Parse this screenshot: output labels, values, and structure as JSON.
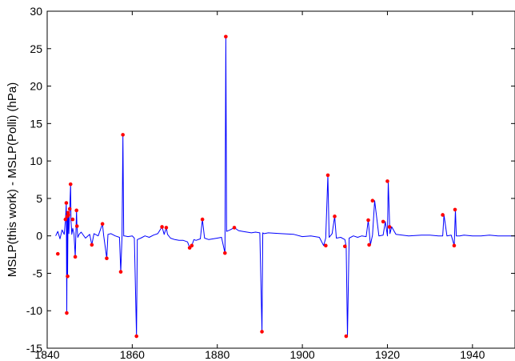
{
  "chart_data": {
    "type": "line",
    "title": "",
    "xlabel": "",
    "ylabel": "MSLP(this work) - MSLP(Polli) (hPa)",
    "xlim": [
      1840,
      1950
    ],
    "ylim": [
      -15,
      30
    ],
    "xticks": [
      1840,
      1860,
      1880,
      1900,
      1920,
      1940
    ],
    "yticks": [
      -15,
      -10,
      -5,
      0,
      5,
      10,
      15,
      20,
      25,
      30
    ],
    "grid": false,
    "legend": "none",
    "colors": {
      "line": "#0000ff",
      "markers": "#ff0000"
    },
    "series": [
      {
        "style": "line",
        "x": [
          1842,
          1842.5,
          1843,
          1843.5,
          1844,
          1844.3,
          1844.5,
          1844.6,
          1844.7,
          1844.8,
          1844.9,
          1845,
          1845.1,
          1845.3,
          1845.5,
          1845.6,
          1845.8,
          1846,
          1846.3,
          1846.6,
          1846.9,
          1847,
          1847.2,
          1847.5,
          1848,
          1849,
          1850,
          1850.5,
          1851,
          1852,
          1853,
          1853.3,
          1854,
          1854.3,
          1855,
          1856,
          1857,
          1857.3,
          1857.6,
          1857.8,
          1858,
          1858.2,
          1859,
          1860,
          1860.5,
          1861,
          1861.2,
          1862,
          1863,
          1864,
          1865,
          1866,
          1867,
          1867.5,
          1868,
          1868.3,
          1869,
          1870,
          1871,
          1872,
          1873,
          1873.5,
          1874,
          1874.5,
          1875,
          1876,
          1876.5,
          1877,
          1878,
          1879,
          1880,
          1881,
          1881.8,
          1882,
          1882.2,
          1883,
          1884,
          1885,
          1886,
          1887,
          1888,
          1889,
          1890,
          1890.5,
          1890.7,
          1891,
          1892,
          1895,
          1898,
          1900,
          1902,
          1904,
          1905,
          1905.5,
          1906,
          1906.3,
          1907,
          1907.6,
          1908,
          1909,
          1910,
          1910.3,
          1910.6,
          1911,
          1912,
          1913,
          1914,
          1915,
          1915.5,
          1916,
          1916.5,
          1917,
          1918,
          1919,
          1919.5,
          1920,
          1920.2,
          1920.6,
          1921,
          1922,
          1925,
          1928,
          1930,
          1932,
          1933,
          1933.3,
          1934,
          1935,
          1935.7,
          1936,
          1936.2,
          1937,
          1938,
          1940,
          1942,
          1944,
          1946,
          1948,
          1950
        ],
        "y": [
          0,
          0.6,
          -0.4,
          0.8,
          0.2,
          2.2,
          4.4,
          -10.3,
          2.6,
          -5.4,
          3.1,
          2.8,
          0.3,
          3.6,
          6.9,
          2.0,
          0.2,
          1.0,
          0.3,
          -2.8,
          3.4,
          1.3,
          -0.2,
          0.2,
          0.5,
          -0.3,
          0.2,
          -1.2,
          0.3,
          0,
          1.6,
          0,
          -3.0,
          0.2,
          0.3,
          0,
          -0.2,
          -4.8,
          0,
          13.5,
          0,
          0,
          -0.1,
          0,
          -0.3,
          -13.4,
          -0.5,
          -0.3,
          0,
          -0.2,
          0.1,
          0.3,
          1.2,
          0.2,
          1.1,
          0.2,
          -0.3,
          -0.5,
          -0.6,
          -0.6,
          -0.8,
          -1.6,
          -1.3,
          -0.5,
          -0.6,
          -0.4,
          2.2,
          -0.3,
          -0.5,
          -0.4,
          -0.3,
          -0.2,
          -2.3,
          26.6,
          0.6,
          0.8,
          1.1,
          0.7,
          0.6,
          0.5,
          0.4,
          0.5,
          0.4,
          -12.8,
          0.4,
          0.3,
          0.4,
          0.3,
          0.2,
          -0.1,
          0,
          -0.2,
          -1.3,
          -0.3,
          8.1,
          -0.2,
          0.3,
          2.6,
          -0.3,
          -0.2,
          -0.5,
          -1.4,
          -13.4,
          -0.3,
          0,
          -0.2,
          0,
          -0.1,
          2.1,
          -1.2,
          0.1,
          4.7,
          0,
          0.1,
          1.9,
          0,
          7.3,
          0.3,
          1.2,
          0.2,
          0,
          0.1,
          0.1,
          0,
          0,
          2.8,
          0,
          0.1,
          -1.3,
          3.5,
          0,
          0,
          0.1,
          0,
          0,
          0.1,
          0,
          0,
          0
        ]
      },
      {
        "style": "markers",
        "x": [
          1842.5,
          1844.3,
          1844.5,
          1844.6,
          1844.7,
          1844.8,
          1844.9,
          1845,
          1845.3,
          1845.5,
          1846,
          1846.6,
          1846.9,
          1847,
          1850.5,
          1853,
          1854,
          1857.3,
          1857.8,
          1861,
          1867,
          1868,
          1873.5,
          1874,
          1876.5,
          1881.8,
          1882,
          1884,
          1890.5,
          1905.5,
          1906,
          1907.6,
          1910,
          1910.3,
          1915.5,
          1915.7,
          1916.5,
          1919,
          1920,
          1920.5,
          1933,
          1935.7,
          1935.9
        ],
        "y": [
          -2.4,
          2.2,
          4.4,
          -10.3,
          2.6,
          -5.4,
          3.1,
          2.8,
          3.6,
          6.9,
          2.2,
          -2.8,
          3.4,
          1.3,
          -1.2,
          1.6,
          -3.0,
          -4.8,
          13.5,
          -13.4,
          1.2,
          1.1,
          -1.6,
          -1.3,
          2.2,
          -2.3,
          26.6,
          1.1,
          -12.8,
          -1.3,
          8.1,
          2.6,
          -1.4,
          -13.4,
          2.1,
          -1.2,
          4.7,
          1.9,
          7.3,
          1.2,
          2.8,
          -1.3,
          3.5
        ]
      }
    ]
  }
}
